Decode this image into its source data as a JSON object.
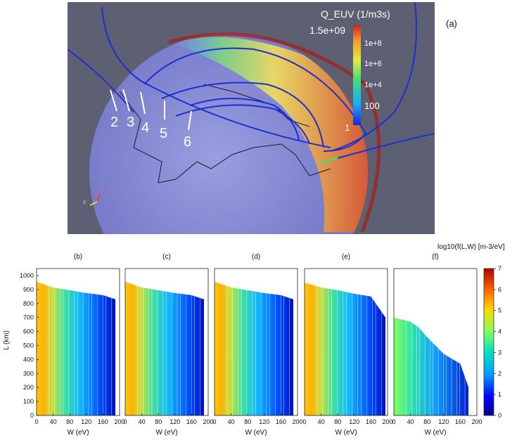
{
  "top": {
    "panel_label": "(a)",
    "colorbar": {
      "title": "Q_EUV (1/m3s)",
      "max_label": "1.5e+09",
      "ticks": [
        "1e+8",
        "1e+6",
        "1e+4",
        "100",
        "1"
      ]
    },
    "field_line_labels": [
      "2",
      "3",
      "4",
      "5",
      "6"
    ],
    "axes_glyph": {
      "x": "x",
      "z": "z"
    }
  },
  "bottom": {
    "colorbar_title": "log10(f(L,W) [m-3/eV])",
    "colorbar_ticks": [
      "7",
      "6",
      "5",
      "4",
      "3",
      "2",
      "1",
      "0"
    ],
    "ylabel": "L (km)",
    "xlabel": "W (eV)",
    "y_ticks": [
      "1000",
      "900",
      "800",
      "700",
      "600",
      "500",
      "400",
      "300",
      "200",
      "100",
      "0"
    ],
    "x_ticks": [
      "0",
      "40",
      "80",
      "120",
      "160",
      "200"
    ]
  },
  "chart_data": [
    {
      "type": "heatmap",
      "title": "(b)",
      "xlabel": "W (eV)",
      "ylabel": "L (km)",
      "xlim": [
        0,
        200
      ],
      "ylim": [
        0,
        1050
      ],
      "top_edge_L": [
        [
          0,
          955
        ],
        [
          40,
          915
        ],
        [
          80,
          895
        ],
        [
          120,
          875
        ],
        [
          160,
          860
        ],
        [
          190,
          830
        ]
      ],
      "colorbar_range": [
        0,
        7
      ]
    },
    {
      "type": "heatmap",
      "title": "(c)",
      "xlabel": "W (eV)",
      "xlim": [
        0,
        200
      ],
      "ylim": [
        0,
        1050
      ],
      "top_edge_L": [
        [
          0,
          955
        ],
        [
          40,
          915
        ],
        [
          80,
          895
        ],
        [
          120,
          875
        ],
        [
          160,
          860
        ],
        [
          190,
          830
        ]
      ],
      "colorbar_range": [
        0,
        7
      ]
    },
    {
      "type": "heatmap",
      "title": "(d)",
      "xlabel": "W (eV)",
      "xlim": [
        0,
        200
      ],
      "ylim": [
        0,
        1050
      ],
      "top_edge_L": [
        [
          0,
          955
        ],
        [
          40,
          915
        ],
        [
          80,
          895
        ],
        [
          120,
          875
        ],
        [
          160,
          860
        ],
        [
          190,
          830
        ]
      ],
      "colorbar_range": [
        0,
        7
      ]
    },
    {
      "type": "heatmap",
      "title": "(e)",
      "xlabel": "W (eV)",
      "xlim": [
        0,
        200
      ],
      "ylim": [
        0,
        1050
      ],
      "top_edge_L": [
        [
          0,
          950
        ],
        [
          40,
          915
        ],
        [
          80,
          895
        ],
        [
          120,
          870
        ],
        [
          160,
          850
        ],
        [
          195,
          700
        ]
      ],
      "colorbar_range": [
        0,
        7
      ]
    },
    {
      "type": "heatmap",
      "title": "(f)",
      "xlabel": "W (eV)",
      "xlim": [
        0,
        200
      ],
      "ylim": [
        0,
        1050
      ],
      "top_edge_L": [
        [
          0,
          700
        ],
        [
          40,
          670
        ],
        [
          60,
          630
        ],
        [
          80,
          560
        ],
        [
          120,
          440
        ],
        [
          160,
          370
        ],
        [
          180,
          200
        ]
      ],
      "colorbar_range": [
        0,
        7
      ]
    }
  ]
}
